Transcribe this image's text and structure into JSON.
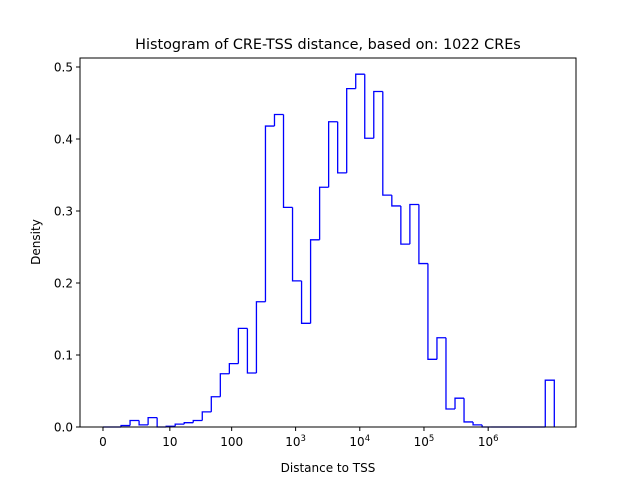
{
  "chart_data": {
    "type": "histogram (step)",
    "title": "Histogram of CRE-TSS distance, based on: 1022 CREs",
    "xlabel": "Distance to TSS",
    "ylabel": "Density",
    "x_scale": "log10(1 + distance)",
    "x_ticks": [
      {
        "value": 0,
        "base": "0",
        "exp": ""
      },
      {
        "value": 10,
        "base": "10",
        "exp": ""
      },
      {
        "value": 100,
        "base": "100",
        "exp": ""
      },
      {
        "value": 1000,
        "base": "10",
        "exp": "3"
      },
      {
        "value": 10000,
        "base": "10",
        "exp": "4"
      },
      {
        "value": 100000,
        "base": "10",
        "exp": "5"
      },
      {
        "value": 1000000,
        "base": "10",
        "exp": "6"
      }
    ],
    "y_ticks": [
      "0.0",
      "0.1",
      "0.2",
      "0.3",
      "0.4",
      "0.5"
    ],
    "ylim": [
      0,
      0.5125
    ],
    "bins_log10_range": [
      0,
      7.03
    ],
    "bin_count": 50,
    "densities": [
      0,
      0,
      0.002,
      0.009,
      0.003,
      0.013,
      0,
      0.001,
      0.004,
      0.006,
      0.009,
      0.021,
      0.042,
      0.074,
      0.088,
      0.137,
      0.075,
      0.174,
      0.418,
      0.434,
      0.305,
      0.203,
      0.144,
      0.26,
      0.333,
      0.424,
      0.353,
      0.47,
      0.49,
      0.401,
      0.466,
      0.322,
      0.307,
      0.254,
      0.309,
      0.227,
      0.094,
      0.124,
      0.025,
      0.04,
      0.007,
      0.003,
      0,
      0,
      0,
      0,
      0,
      0,
      0,
      0.065
    ],
    "line_color": "#0000ff",
    "grid": false,
    "legend": "none"
  }
}
